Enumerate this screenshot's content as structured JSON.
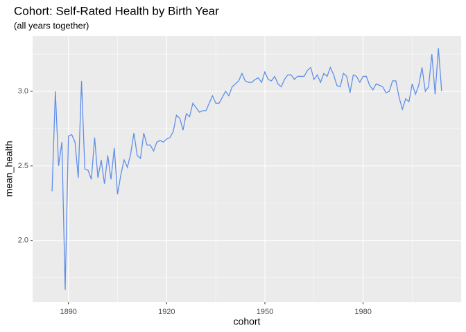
{
  "chart_data": {
    "type": "line",
    "title": "Cohort: Self-Rated Health by Birth Year",
    "subtitle": "(all years together)",
    "x_label": "cohort",
    "y_label": "mean_health",
    "x": [
      1885,
      1886,
      1887,
      1888,
      1889,
      1890,
      1891,
      1892,
      1893,
      1894,
      1895,
      1896,
      1897,
      1898,
      1899,
      1900,
      1901,
      1902,
      1903,
      1904,
      1905,
      1906,
      1907,
      1908,
      1909,
      1910,
      1911,
      1912,
      1913,
      1914,
      1915,
      1916,
      1917,
      1918,
      1919,
      1920,
      1921,
      1922,
      1923,
      1924,
      1925,
      1926,
      1927,
      1928,
      1929,
      1930,
      1931,
      1932,
      1933,
      1934,
      1935,
      1936,
      1937,
      1938,
      1939,
      1940,
      1941,
      1942,
      1943,
      1944,
      1945,
      1946,
      1947,
      1948,
      1949,
      1950,
      1951,
      1952,
      1953,
      1954,
      1955,
      1956,
      1957,
      1958,
      1959,
      1960,
      1961,
      1962,
      1963,
      1964,
      1965,
      1966,
      1967,
      1968,
      1969,
      1970,
      1971,
      1972,
      1973,
      1974,
      1975,
      1976,
      1977,
      1978,
      1979,
      1980,
      1981,
      1982,
      1983,
      1984,
      1985,
      1986,
      1987,
      1988,
      1989,
      1990,
      1991,
      1992,
      1993,
      1994,
      1995,
      1996,
      1997,
      1998,
      1999,
      2000,
      2001,
      2002,
      2003,
      2004
    ],
    "series": [
      {
        "color": "#5f8fe8",
        "values": [
          2.33,
          3.0,
          2.5,
          2.66,
          1.67,
          2.7,
          2.71,
          2.66,
          2.42,
          3.07,
          2.48,
          2.47,
          2.41,
          2.69,
          2.42,
          2.54,
          2.38,
          2.57,
          2.41,
          2.62,
          2.31,
          2.44,
          2.54,
          2.49,
          2.58,
          2.72,
          2.57,
          2.55,
          2.72,
          2.64,
          2.64,
          2.6,
          2.66,
          2.67,
          2.66,
          2.68,
          2.69,
          2.73,
          2.84,
          2.82,
          2.74,
          2.85,
          2.83,
          2.92,
          2.89,
          2.86,
          2.87,
          2.87,
          2.92,
          2.97,
          2.92,
          2.92,
          2.96,
          3.0,
          2.97,
          3.03,
          3.05,
          3.07,
          3.12,
          3.07,
          3.06,
          3.06,
          3.08,
          3.09,
          3.06,
          3.13,
          3.08,
          3.07,
          3.1,
          3.05,
          3.03,
          3.08,
          3.11,
          3.11,
          3.08,
          3.1,
          3.1,
          3.1,
          3.14,
          3.16,
          3.08,
          3.11,
          3.06,
          3.12,
          3.1,
          3.16,
          3.11,
          3.04,
          3.03,
          3.12,
          3.1,
          2.99,
          3.11,
          3.1,
          3.06,
          3.1,
          3.1,
          3.04,
          3.01,
          3.05,
          3.04,
          3.03,
          2.99,
          3.0,
          3.07,
          3.07,
          2.96,
          2.88,
          2.95,
          2.93,
          3.05,
          2.98,
          3.04,
          3.16,
          3.0,
          3.03,
          3.25,
          2.98,
          3.29,
          3.0
        ]
      }
    ],
    "xlim": [
      1879.05,
      2009.95
    ],
    "xticks": [
      1890,
      1920,
      1950,
      1980
    ],
    "x_minor_breaks": [
      1875,
      1905,
      1935,
      1965,
      1995
    ],
    "ylim": [
      1.586,
      3.371
    ],
    "yticks": [
      {
        "value": 2,
        "label": "2.0"
      },
      {
        "value": 2.5,
        "label": "2.5"
      },
      {
        "value": 3,
        "label": "3.0"
      }
    ],
    "y_minor_breaks": [
      1.75,
      2.25,
      2.75,
      3.25
    ],
    "grid": true
  }
}
